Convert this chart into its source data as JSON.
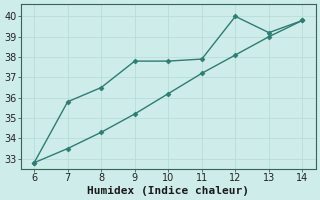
{
  "line1_x": [
    6,
    7,
    8,
    9,
    10,
    11,
    12,
    13,
    14
  ],
  "line1_y": [
    32.8,
    35.8,
    36.5,
    37.8,
    37.8,
    37.9,
    40.0,
    39.2,
    39.8
  ],
  "line2_x": [
    6,
    7,
    8,
    9,
    10,
    11,
    12,
    13,
    14
  ],
  "line2_y": [
    32.8,
    33.5,
    34.3,
    35.2,
    36.2,
    37.2,
    38.1,
    39.0,
    39.8
  ],
  "line_color": "#2d7d72",
  "bg_color": "#ceecea",
  "grid_color": "#b8ddd9",
  "xlabel": "Humidex (Indice chaleur)",
  "xlim": [
    5.6,
    14.4
  ],
  "ylim": [
    32.5,
    40.6
  ],
  "yticks": [
    33,
    34,
    35,
    36,
    37,
    38,
    39,
    40
  ],
  "xticks": [
    6,
    7,
    8,
    9,
    10,
    11,
    12,
    13,
    14
  ],
  "marker": "D",
  "markersize": 2.5,
  "linewidth": 1.0,
  "xlabel_fontsize": 8,
  "tick_fontsize": 7
}
